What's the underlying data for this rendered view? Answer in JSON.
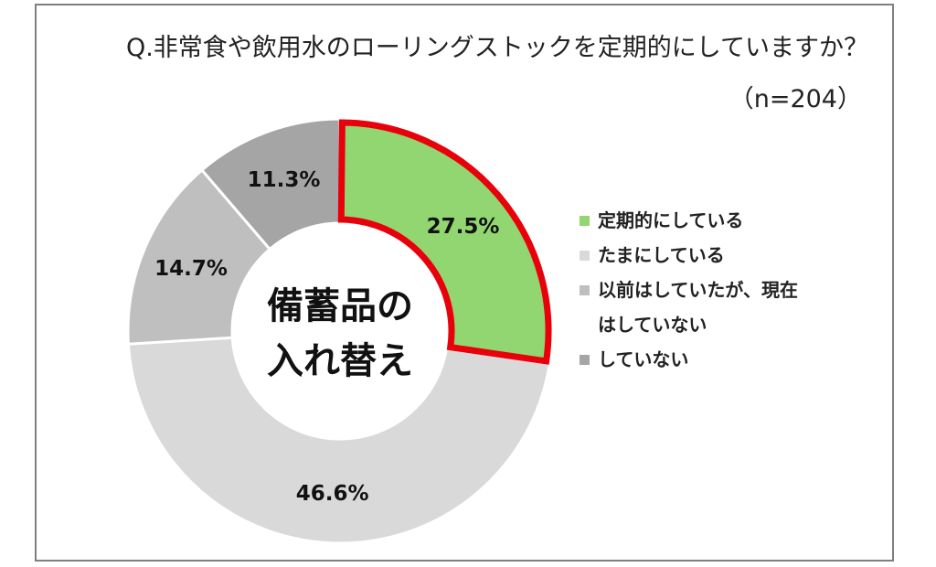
{
  "title": "Q.非常食や飲用水のローリングストックを定期的にしていますか？",
  "subtitle": "（n=204）",
  "center_label": [
    "備蓄品の",
    "入れ替え"
  ],
  "chart_data": {
    "type": "pie",
    "donut": true,
    "start_angle_deg": 0,
    "direction": "clockwise",
    "categories": [
      "定期的にしている",
      "たまにしている",
      "以前はしていたが、現在はしていない",
      "していない"
    ],
    "values": [
      27.5,
      46.6,
      14.7,
      11.3
    ],
    "value_labels": [
      "27.5%",
      "46.6%",
      "14.7%",
      "11.3%"
    ],
    "colors": [
      "#92d672",
      "#d9d9d9",
      "#bfbfbf",
      "#a5a5a5"
    ],
    "highlight": {
      "index": 0,
      "outline_color": "#e8000b"
    },
    "legend": {
      "placement": "right",
      "lines": [
        [
          "定期的にしている"
        ],
        [
          "たまにしている"
        ],
        [
          "以前はしていたが、現在",
          "はしていない"
        ],
        [
          "していない"
        ]
      ]
    }
  }
}
